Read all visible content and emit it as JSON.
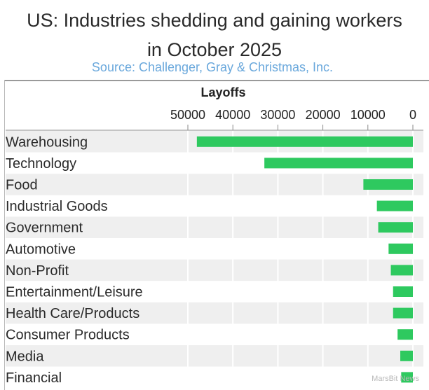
{
  "header": {
    "title_line1": "US: Industries shedding and gaining workers",
    "title_line2": "in October 2025",
    "source": "Source: Challenger, Gray & Christmas, Inc."
  },
  "watermark": "MarsBit News",
  "colors": {
    "bar": "#2ec95f",
    "source": "#6aa8dc",
    "band": "#efefef"
  },
  "chart_data": {
    "type": "bar",
    "orientation": "horizontal",
    "title": "US: Industries shedding and gaining workers in October 2025",
    "xlabel": "Layoffs",
    "xlim": [
      0,
      50000
    ],
    "x_reversed": true,
    "ticks": [
      50000,
      40000,
      30000,
      20000,
      10000,
      0
    ],
    "tick_labels": [
      "50000",
      "40000",
      "30000",
      "20000",
      "10000",
      "0"
    ],
    "categories": [
      "Warehousing",
      "Technology",
      "Food",
      "Industrial Goods",
      "Government",
      "Automotive",
      "Non-Profit",
      "Entertainment/Leisure",
      "Health Care/Products",
      "Consumer Products",
      "Media",
      "Financial"
    ],
    "values": [
      48000,
      33000,
      11000,
      8000,
      7700,
      5400,
      4900,
      4400,
      4400,
      3400,
      2800,
      2600
    ]
  }
}
